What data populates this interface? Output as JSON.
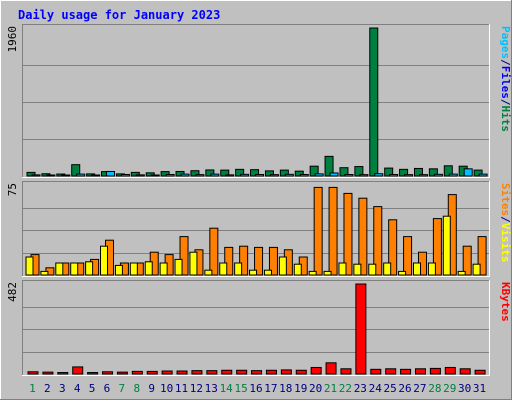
{
  "chart_data": [
    {
      "type": "bar",
      "title": "Daily usage for January 2023",
      "categories": [
        "1",
        "2",
        "3",
        "4",
        "5",
        "6",
        "7",
        "8",
        "9",
        "10",
        "11",
        "12",
        "13",
        "14",
        "15",
        "16",
        "17",
        "18",
        "19",
        "20",
        "21",
        "22",
        "23",
        "24",
        "25",
        "26",
        "27",
        "28",
        "29",
        "30",
        "31"
      ],
      "weekend_days": [
        1,
        7,
        8,
        14,
        15,
        21,
        22,
        28,
        29
      ],
      "y_tick_label": "1960",
      "ylim": [
        0,
        1960
      ],
      "series": [
        {
          "name": "Hits",
          "color": "#008040",
          "values": [
            48,
            30,
            26,
            150,
            28,
            58,
            28,
            48,
            42,
            58,
            60,
            70,
            80,
            78,
            88,
            84,
            68,
            78,
            64,
            130,
            260,
            110,
            125,
            1960,
            105,
            88,
            100,
            95,
            135,
            130,
            78
          ]
        },
        {
          "name": "Files",
          "color": "#0000ff",
          "values": [
            0,
            0,
            0,
            0,
            0,
            0,
            0,
            0,
            0,
            0,
            0,
            0,
            0,
            0,
            0,
            0,
            0,
            0,
            0,
            0,
            0,
            0,
            0,
            0,
            0,
            0,
            0,
            0,
            0,
            0,
            0
          ]
        },
        {
          "name": "Pages",
          "color": "#00c0ff",
          "values": [
            15,
            10,
            8,
            25,
            10,
            60,
            20,
            15,
            12,
            20,
            25,
            18,
            25,
            15,
            22,
            20,
            18,
            22,
            20,
            28,
            40,
            20,
            18,
            30,
            20,
            18,
            18,
            22,
            25,
            95,
            25
          ]
        }
      ],
      "axis_labels": [
        {
          "text": "Pages",
          "color": "#00c0ff"
        },
        {
          "text": "/",
          "color": "#000080"
        },
        {
          "text": "Files",
          "color": "#0000ff"
        },
        {
          "text": "/",
          "color": "#000080"
        },
        {
          "text": "Hits",
          "color": "#008040"
        }
      ]
    },
    {
      "type": "bar",
      "categories": [
        "1",
        "2",
        "3",
        "4",
        "5",
        "6",
        "7",
        "8",
        "9",
        "10",
        "11",
        "12",
        "13",
        "14",
        "15",
        "16",
        "17",
        "18",
        "19",
        "20",
        "21",
        "22",
        "23",
        "24",
        "25",
        "26",
        "27",
        "28",
        "29",
        "30",
        "31"
      ],
      "y_tick_label": "75",
      "ylim": [
        0,
        75
      ],
      "series": [
        {
          "name": "Visits",
          "color": "#ffff00",
          "values": [
            15,
            3,
            10,
            10,
            11,
            24,
            8,
            10,
            11,
            10,
            13,
            19,
            4,
            10,
            10,
            4,
            4,
            15,
            9,
            3,
            3,
            10,
            9,
            9,
            10,
            3,
            10,
            10,
            49,
            3,
            9
          ]
        },
        {
          "name": "Sites",
          "color": "#ff8000",
          "values": [
            17,
            6,
            10,
            10,
            13,
            29,
            10,
            10,
            19,
            17,
            32,
            21,
            39,
            23,
            24,
            23,
            23,
            21,
            15,
            73,
            73,
            68,
            64,
            57,
            46,
            32,
            19,
            47,
            67,
            24,
            32
          ]
        }
      ],
      "axis_labels": [
        {
          "text": "Sites",
          "color": "#ff8000"
        },
        {
          "text": "/",
          "color": "#000080"
        },
        {
          "text": "Visits",
          "color": "#ffff00"
        }
      ]
    },
    {
      "type": "bar",
      "categories": [
        "1",
        "2",
        "3",
        "4",
        "5",
        "6",
        "7",
        "8",
        "9",
        "10",
        "11",
        "12",
        "13",
        "14",
        "15",
        "16",
        "17",
        "18",
        "19",
        "20",
        "21",
        "22",
        "23",
        "24",
        "25",
        "26",
        "27",
        "28",
        "29",
        "30",
        "31"
      ],
      "y_tick_label": "482",
      "ylim": [
        0,
        482
      ],
      "series": [
        {
          "name": "KBytes",
          "color": "#ff0000",
          "values": [
            12,
            10,
            8,
            38,
            8,
            12,
            10,
            14,
            14,
            16,
            16,
            18,
            18,
            20,
            20,
            18,
            20,
            22,
            20,
            35,
            60,
            28,
            482,
            25,
            28,
            25,
            28,
            30,
            35,
            28,
            20
          ]
        }
      ],
      "axis_labels": [
        {
          "text": "KBytes",
          "color": "#ff0000"
        }
      ]
    }
  ],
  "colors": {
    "background": "#c0c0c0",
    "title": "#0000ff",
    "gridline": "#808080",
    "bar_outline": "#000000",
    "weekday_label": "#000080",
    "weekend_label": "#008040"
  }
}
